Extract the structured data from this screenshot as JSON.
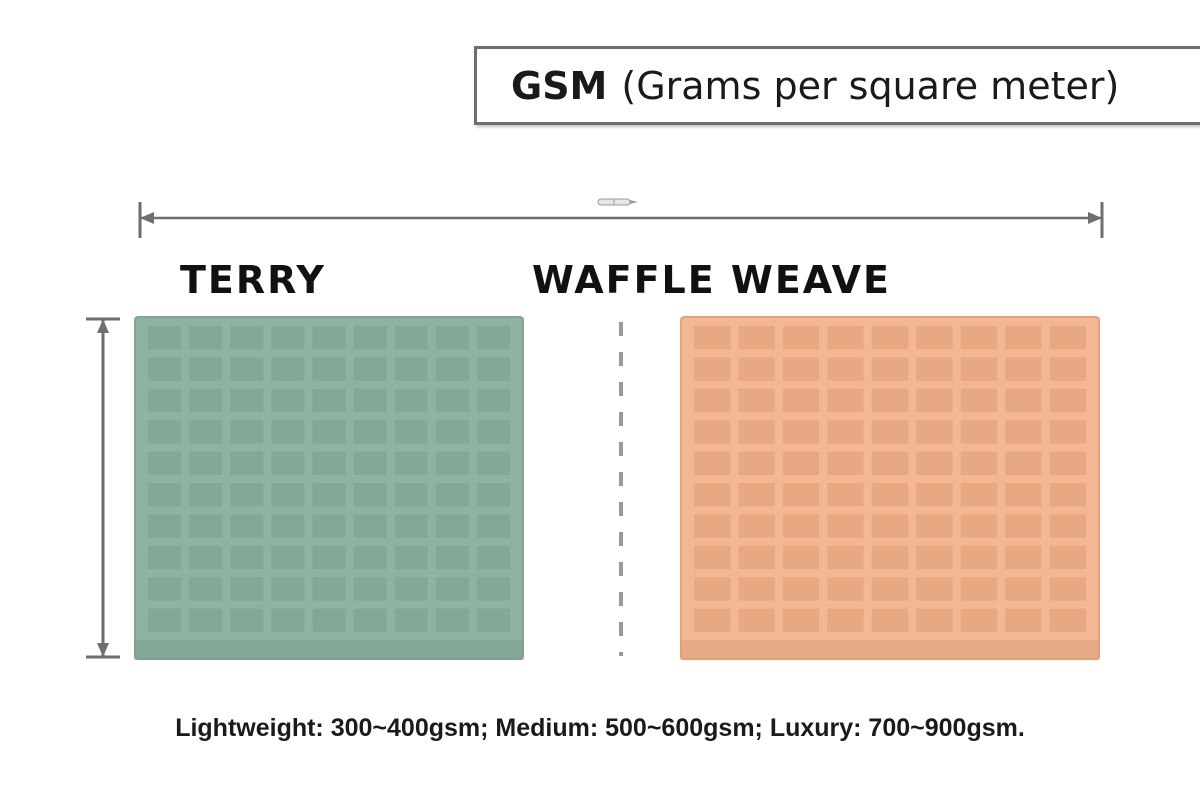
{
  "title": {
    "bold": "GSM",
    "rest": "(Grams per square meter)"
  },
  "labels": {
    "left": "TERRY",
    "right": "WAFFLE WEAVE"
  },
  "caption": "Lightweight: 300~400gsm; Medium: 500~600gsm; Luxury: 700~900gsm.",
  "colors": {
    "terry": "#8fb3a3",
    "terry_dark": "#7a9e8e",
    "waffle": "#f3b893",
    "waffle_dark": "#dc9a74",
    "measure_line": "#6e6e6e"
  },
  "icons": {
    "horizontal_measure": "width-dimension-arrow",
    "vertical_measure": "height-dimension-arrow",
    "ruler_tag": "pen-icon"
  }
}
